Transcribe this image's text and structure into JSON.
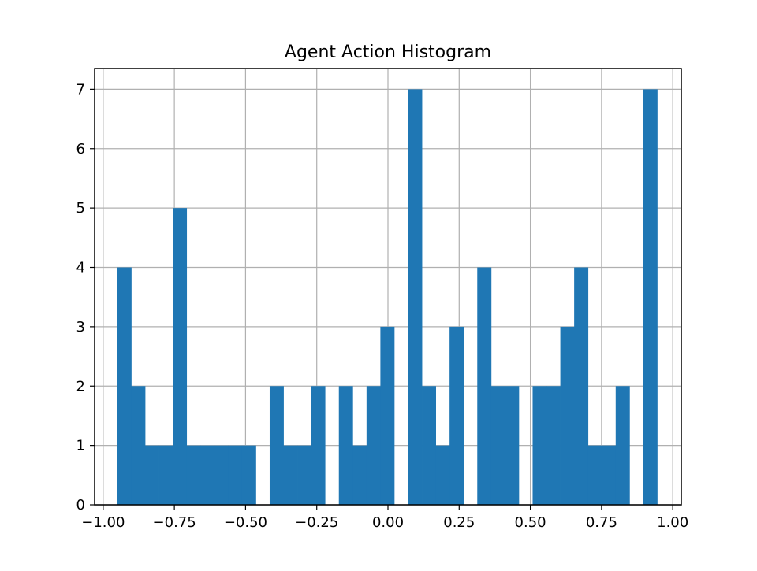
{
  "chart_data": {
    "type": "bar",
    "title": "Agent Action Histogram",
    "xlabel": "",
    "ylabel": "",
    "xlim": [
      -1.03,
      1.03
    ],
    "ylim": [
      0,
      7.35
    ],
    "x_ticks": [
      -1.0,
      -0.75,
      -0.5,
      -0.25,
      0.0,
      0.25,
      0.5,
      0.75,
      1.0
    ],
    "x_tick_labels": [
      "−1.00",
      "−0.75",
      "−0.50",
      "−0.25",
      "0.00",
      "0.25",
      "0.50",
      "0.75",
      "1.00"
    ],
    "y_ticks": [
      0,
      1,
      2,
      3,
      4,
      5,
      6,
      7
    ],
    "y_tick_labels": [
      "0",
      "1",
      "2",
      "3",
      "4",
      "5",
      "6",
      "7"
    ],
    "grid": true,
    "bar_color": "#1f77b4",
    "bins": {
      "start": -0.95,
      "width": 0.0486,
      "counts": [
        4,
        2,
        1,
        1,
        5,
        1,
        1,
        1,
        1,
        1,
        0,
        2,
        1,
        1,
        2,
        0,
        2,
        1,
        2,
        3,
        0,
        7,
        2,
        1,
        3,
        0,
        4,
        2,
        2,
        0,
        2,
        2,
        3,
        4,
        1,
        1,
        2,
        0,
        7
      ]
    }
  }
}
